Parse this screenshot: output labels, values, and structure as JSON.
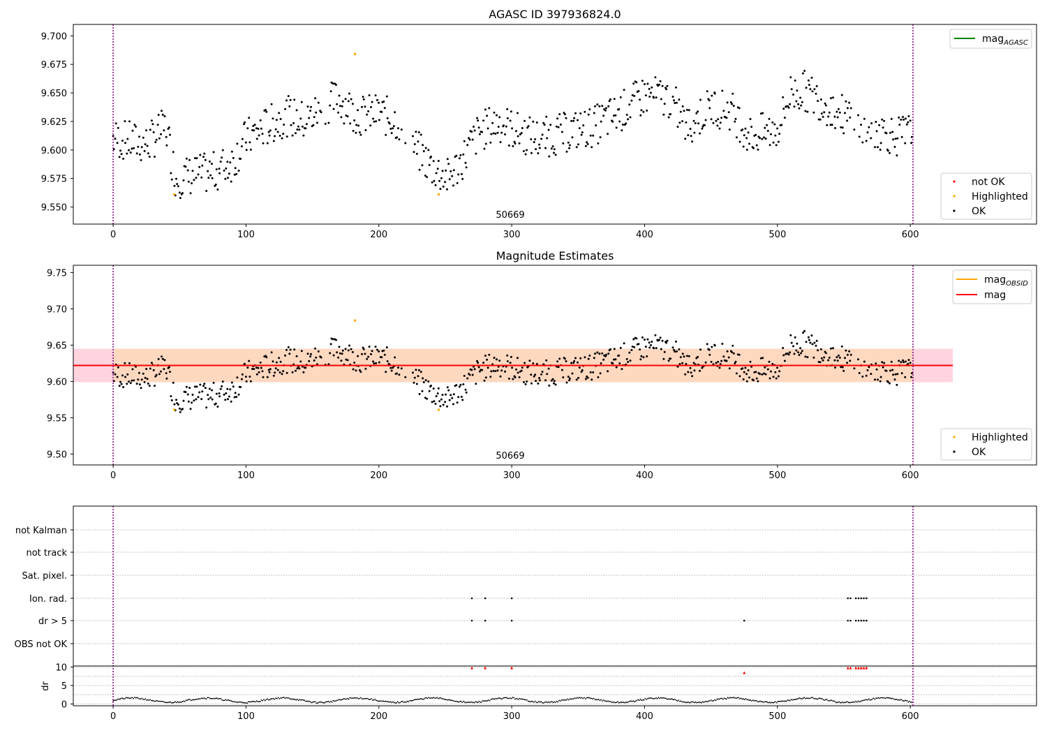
{
  "chart_data": [
    {
      "type": "scatter",
      "title": "AGASC ID 397936824.0",
      "annotation": "50669",
      "xlim": [
        -30,
        695
      ],
      "ylim": [
        9.535,
        9.71
      ],
      "xticks": [
        0,
        100,
        200,
        300,
        400,
        500,
        600
      ],
      "yticks": [
        9.55,
        9.575,
        9.6,
        9.625,
        9.65,
        9.675,
        9.7
      ],
      "ytick_labels": [
        "9.550",
        "9.575",
        "9.600",
        "9.625",
        "9.650",
        "9.675",
        "9.700"
      ],
      "vlines": [
        0,
        602
      ],
      "legend_lines": [
        {
          "label": "mag",
          "sub": "AGASC",
          "color": "#008000"
        }
      ],
      "legend_points": [
        {
          "label": "not OK",
          "color": "#ff0000"
        },
        {
          "label": "Highlighted",
          "color": "#ffa500"
        },
        {
          "label": "OK",
          "color": "#000000"
        }
      ],
      "highlighted": [
        [
          46,
          9.561
        ],
        [
          182,
          9.684
        ],
        [
          245,
          9.561
        ]
      ],
      "series": [
        {
          "name": "OK",
          "color": "#000000"
        }
      ]
    },
    {
      "type": "scatter",
      "title": "Magnitude Estimates",
      "annotation": "50669",
      "xlim": [
        -30,
        695
      ],
      "ylim": [
        9.485,
        9.76
      ],
      "xticks": [
        0,
        100,
        200,
        300,
        400,
        500,
        600
      ],
      "yticks": [
        9.5,
        9.55,
        9.6,
        9.65,
        9.7,
        9.75
      ],
      "ytick_labels": [
        "9.50",
        "9.55",
        "9.60",
        "9.65",
        "9.70",
        "9.75"
      ],
      "vlines": [
        0,
        602
      ],
      "mag_line": {
        "value": 9.622,
        "x_end": 632,
        "color": "#ff0000"
      },
      "mag_band": {
        "low": 9.599,
        "high": 9.645,
        "color": "#ffd4df"
      },
      "obsid_band": {
        "low": 9.599,
        "high": 9.645,
        "x_end": 632,
        "color": "#ffd8c0"
      },
      "legend_lines": [
        {
          "label": "mag",
          "sub": "OBSID",
          "color": "#ffa500"
        },
        {
          "label": "mag",
          "sub": "",
          "color": "#ff0000"
        }
      ],
      "legend_points": [
        {
          "label": "Highlighted",
          "color": "#ffa500"
        },
        {
          "label": "OK",
          "color": "#000000"
        }
      ],
      "highlighted": [
        [
          46,
          9.561
        ],
        [
          182,
          9.684
        ],
        [
          245,
          9.561
        ]
      ],
      "series": [
        {
          "name": "OK",
          "color": "#000000"
        }
      ]
    },
    {
      "type": "scatter",
      "xlim": [
        -30,
        695
      ],
      "xticks": [
        0,
        100,
        200,
        300,
        400,
        500,
        600
      ],
      "vlines": [
        0,
        602
      ],
      "flag_rows": [
        "not Kalman",
        "not track",
        "Sat. pixel.",
        "Ion. rad.",
        "dr > 5",
        "OBS not OK"
      ],
      "flags": {
        "Ion. rad.": [
          270,
          280,
          300,
          553,
          555,
          559,
          561,
          563,
          565,
          567
        ],
        "dr > 5": [
          270,
          280,
          300,
          475,
          553,
          555,
          559,
          561,
          563,
          565,
          567
        ]
      },
      "dr_label": "dr",
      "dr_yticks": [
        0,
        5,
        10
      ],
      "dr_ylim": [
        -0.5,
        10.3
      ],
      "dr_outliers": [
        [
          270,
          9.8
        ],
        [
          280,
          9.8
        ],
        [
          300,
          9.8
        ],
        [
          475,
          8.5
        ],
        [
          553,
          9.8
        ],
        [
          555,
          9.8
        ],
        [
          559,
          9.8
        ],
        [
          561,
          9.8
        ],
        [
          563,
          9.8
        ],
        [
          565,
          9.8
        ],
        [
          567,
          9.8
        ]
      ]
    }
  ]
}
